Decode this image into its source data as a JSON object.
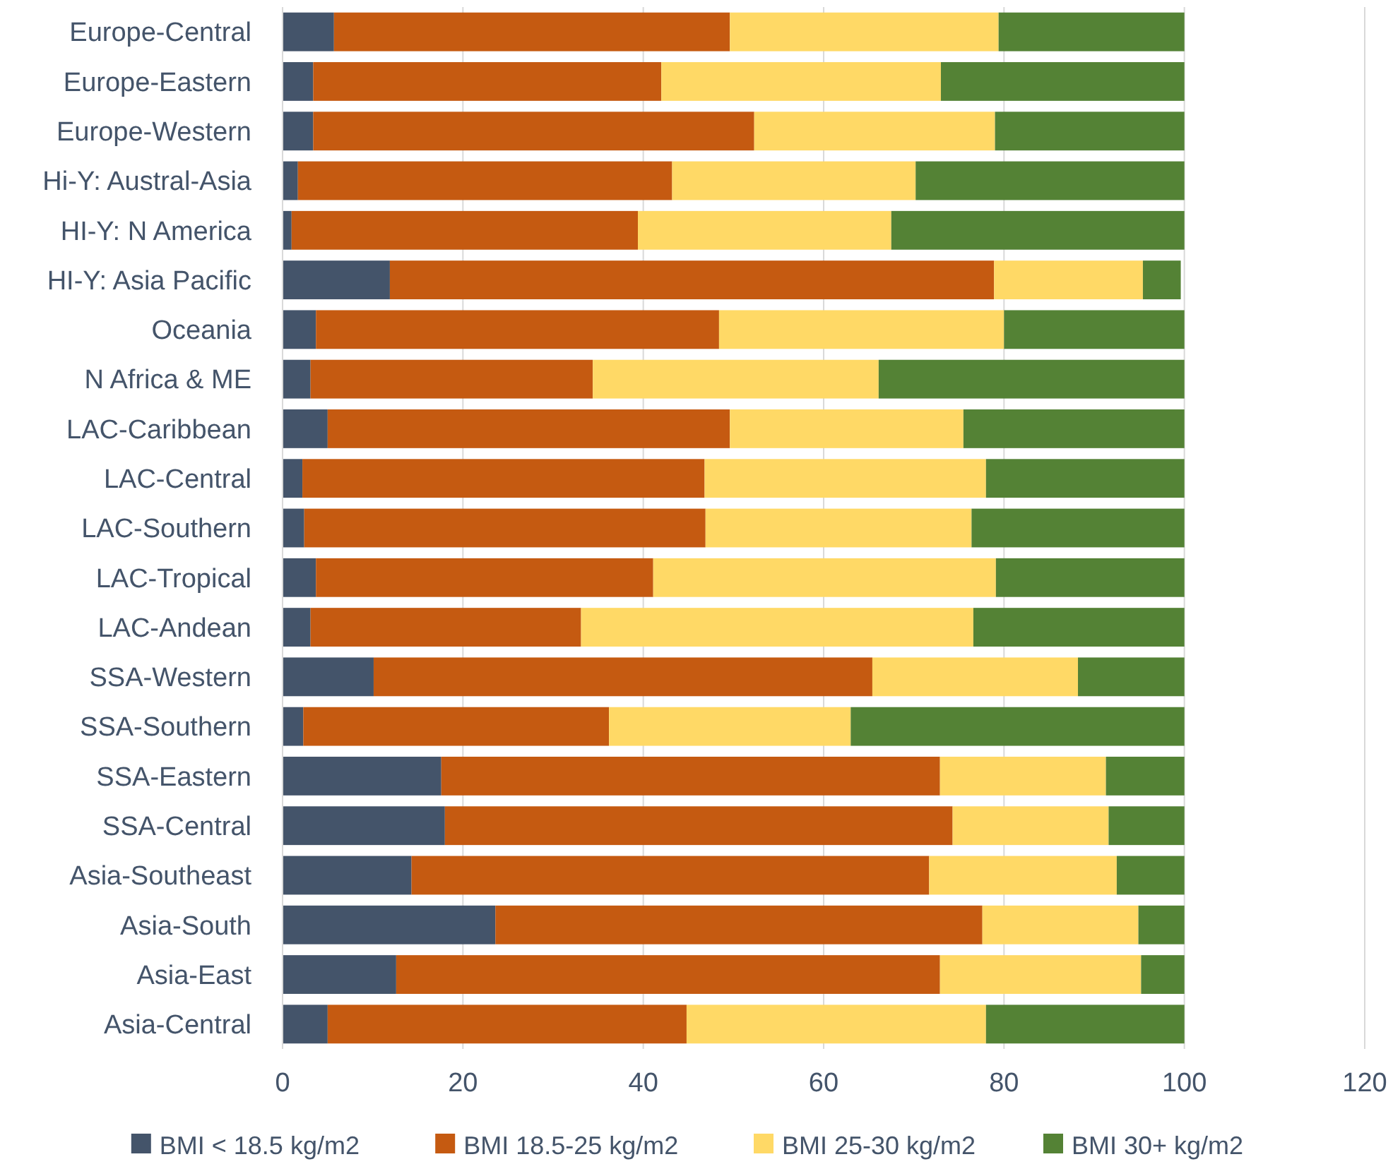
{
  "chart_data": {
    "type": "bar",
    "orientation": "horizontal",
    "stacked": true,
    "categories": [
      "Europe-Central",
      "Europe-Eastern",
      "Europe-Western",
      "Hi-Y: Austral-Asia",
      "HI-Y: N America",
      "HI-Y: Asia Pacific",
      "Oceania",
      "N Africa & ME",
      "LAC-Caribbean",
      "LAC-Central",
      "LAC-Southern",
      "LAC-Tropical",
      "LAC-Andean",
      "SSA-Western",
      "SSA-Southern",
      "SSA-Eastern",
      "SSA-Central",
      "Asia-Southeast",
      "Asia-South",
      "Asia-East",
      "Asia-Central"
    ],
    "series": [
      {
        "name": "BMI < 18.5 kg/m2",
        "color": "#44546a",
        "values": [
          5.7,
          3.4,
          3.4,
          1.7,
          1.0,
          11.9,
          3.7,
          3.1,
          5.0,
          2.2,
          2.4,
          3.7,
          3.1,
          10.1,
          2.3,
          17.6,
          18.0,
          14.3,
          23.6,
          12.6,
          5.0
        ]
      },
      {
        "name": "BMI 18.5-25 kg/m2",
        "color": "#c55a11",
        "values": [
          43.9,
          38.6,
          48.9,
          41.5,
          38.4,
          67.0,
          44.7,
          31.3,
          44.6,
          44.6,
          44.5,
          37.4,
          30.0,
          55.3,
          33.9,
          55.3,
          56.3,
          57.4,
          54.0,
          60.3,
          39.8
        ]
      },
      {
        "name": "BMI 25-30 kg/m2",
        "color": "#ffd966",
        "values": [
          29.8,
          31.0,
          26.7,
          27.0,
          28.1,
          16.5,
          31.6,
          31.7,
          25.9,
          31.2,
          29.5,
          38.0,
          43.5,
          22.8,
          26.8,
          18.4,
          17.3,
          20.8,
          17.3,
          22.3,
          33.2
        ]
      },
      {
        "name": "BMI 30+ kg/m2",
        "color": "#548235",
        "values": [
          20.6,
          27.0,
          21.0,
          29.8,
          32.5,
          4.2,
          20.0,
          33.9,
          24.5,
          22.0,
          23.6,
          20.9,
          23.4,
          11.8,
          37.0,
          8.7,
          8.4,
          7.5,
          5.1,
          4.8,
          22.0
        ]
      }
    ],
    "xlim": [
      0,
      120
    ],
    "xticks": [
      0,
      20,
      40,
      60,
      80,
      100,
      120
    ],
    "grid": "x",
    "legend": "bottom"
  }
}
